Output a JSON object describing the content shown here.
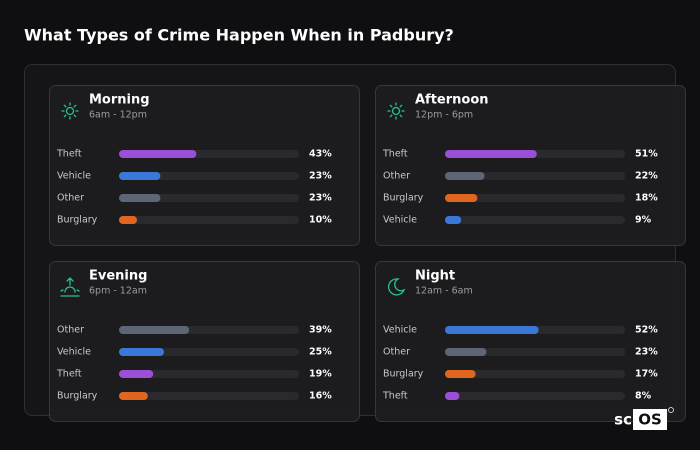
{
  "title": "What Types of Crime Happen When in Padbury?",
  "brand": [
    "sc",
    "OS"
  ],
  "chart_data": [
    {
      "type": "bar",
      "title": "Morning",
      "subtitle": "6am - 12pm",
      "xlim": [
        0,
        100
      ],
      "categories": [
        "Theft",
        "Vehicle",
        "Other",
        "Burglary"
      ],
      "values": [
        43,
        23,
        23,
        10
      ],
      "value_labels": [
        "43%",
        "23%",
        "23%",
        "10%"
      ],
      "colors": [
        "#9b4fd6",
        "#3a78d8",
        "#5c6677",
        "#e0661f"
      ]
    },
    {
      "type": "bar",
      "title": "Afternoon",
      "subtitle": "12pm - 6pm",
      "xlim": [
        0,
        100
      ],
      "categories": [
        "Theft",
        "Other",
        "Burglary",
        "Vehicle"
      ],
      "values": [
        51,
        22,
        18,
        9
      ],
      "value_labels": [
        "51%",
        "22%",
        "18%",
        "9%"
      ],
      "colors": [
        "#9b4fd6",
        "#5c6677",
        "#e0661f",
        "#3a78d8"
      ]
    },
    {
      "type": "bar",
      "title": "Evening",
      "subtitle": "6pm - 12am",
      "xlim": [
        0,
        100
      ],
      "categories": [
        "Other",
        "Vehicle",
        "Theft",
        "Burglary"
      ],
      "values": [
        39,
        25,
        19,
        16
      ],
      "value_labels": [
        "39%",
        "25%",
        "19%",
        "16%"
      ],
      "colors": [
        "#5c6677",
        "#3a78d8",
        "#9b4fd6",
        "#e0661f"
      ]
    },
    {
      "type": "bar",
      "title": "Night",
      "subtitle": "12am - 6am",
      "xlim": [
        0,
        100
      ],
      "categories": [
        "Vehicle",
        "Other",
        "Burglary",
        "Theft"
      ],
      "values": [
        52,
        23,
        17,
        8
      ],
      "value_labels": [
        "52%",
        "23%",
        "17%",
        "8%"
      ],
      "colors": [
        "#3a78d8",
        "#5c6677",
        "#e0661f",
        "#9b4fd6"
      ]
    }
  ]
}
